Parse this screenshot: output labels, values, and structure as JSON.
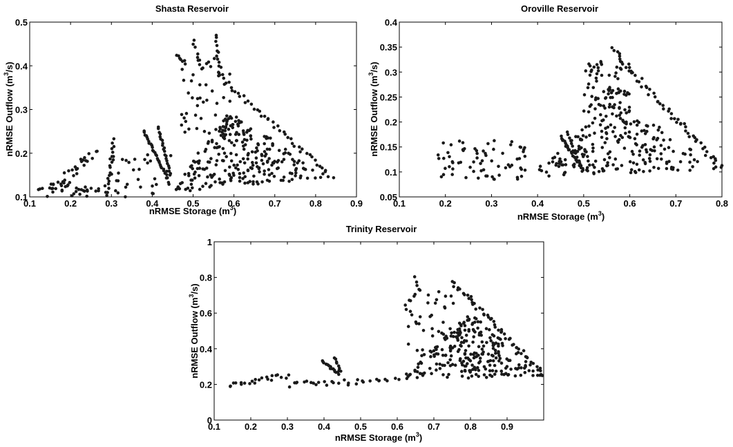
{
  "chart_data": [
    {
      "type": "scatter",
      "title": "Shasta Reservoir",
      "xlabel": {
        "base": "nRMSE Storage (m",
        "sup": "3",
        "tail": ")"
      },
      "ylabel": {
        "base": "nRMSE Outflow (m",
        "sup": "3",
        "tail": "/s)"
      },
      "xlim": [
        0.1,
        0.9
      ],
      "ylim": [
        0.1,
        0.5
      ],
      "xticks": [
        0.1,
        0.2,
        0.3,
        0.4,
        0.5,
        0.6,
        0.7,
        0.8,
        0.9
      ],
      "xtick_labels": [
        "0.1",
        "0.2",
        "0.3",
        "0.4",
        "0.5",
        "0.6",
        "0.7",
        "0.8",
        "0.9"
      ],
      "yticks": [
        0.1,
        0.2,
        0.3,
        0.4,
        0.5
      ],
      "ytick_labels": [
        "0.1",
        "0.2",
        "0.3",
        "0.4",
        "0.5"
      ],
      "point_groups": [
        {
          "kind": "line",
          "from": [
            0.14,
            0.105
          ],
          "to": [
            0.26,
            0.21
          ],
          "n": 20,
          "jitter": [
            0.01,
            0.01
          ]
        },
        {
          "kind": "line",
          "from": [
            0.165,
            0.11
          ],
          "to": [
            0.25,
            0.2
          ],
          "n": 12,
          "jitter": [
            0.01,
            0.012
          ]
        },
        {
          "kind": "line",
          "from": [
            0.29,
            0.105
          ],
          "to": [
            0.305,
            0.23
          ],
          "n": 18,
          "jitter": [
            0.003,
            0.004
          ]
        },
        {
          "kind": "line",
          "from": [
            0.38,
            0.25
          ],
          "to": [
            0.43,
            0.155
          ],
          "n": 26,
          "jitter": [
            0.002,
            0.002
          ]
        },
        {
          "kind": "line",
          "from": [
            0.415,
            0.26
          ],
          "to": [
            0.445,
            0.15
          ],
          "n": 22,
          "jitter": [
            0.002,
            0.002
          ]
        },
        {
          "kind": "line",
          "from": [
            0.46,
            0.425
          ],
          "to": [
            0.48,
            0.405
          ],
          "n": 7,
          "jitter": [
            0.003,
            0.004
          ]
        },
        {
          "kind": "line",
          "from": [
            0.5,
            0.46
          ],
          "to": [
            0.52,
            0.39
          ],
          "n": 8,
          "jitter": [
            0.003,
            0.003
          ]
        },
        {
          "kind": "line",
          "from": [
            0.555,
            0.47
          ],
          "to": [
            0.565,
            0.38
          ],
          "n": 12,
          "jitter": [
            0.003,
            0.004
          ]
        },
        {
          "kind": "line",
          "from": [
            0.56,
            0.38
          ],
          "to": [
            0.84,
            0.145
          ],
          "n": 45,
          "jitter": [
            0.004,
            0.006
          ]
        },
        {
          "kind": "box",
          "x": [
            0.47,
            0.6
          ],
          "y": [
            0.24,
            0.42
          ],
          "n": 45
        },
        {
          "kind": "tri",
          "a": [
            0.45,
            0.11
          ],
          "b": [
            0.84,
            0.145
          ],
          "c": [
            0.58,
            0.3
          ],
          "n": 260
        },
        {
          "kind": "box",
          "x": [
            0.12,
            0.3
          ],
          "y": [
            0.1,
            0.13
          ],
          "n": 30
        },
        {
          "kind": "box",
          "x": [
            0.3,
            0.45
          ],
          "y": [
            0.1,
            0.2
          ],
          "n": 35
        }
      ]
    },
    {
      "type": "scatter",
      "title": "Oroville Reservoir",
      "xlabel": {
        "base": "nRMSE Storage (m",
        "sup": "3",
        "tail": ")"
      },
      "ylabel": {
        "base": "nRMSE Outflow (m",
        "sup": "3",
        "tail": "/s)"
      },
      "xlim": [
        0.1,
        0.8
      ],
      "ylim": [
        0.05,
        0.4
      ],
      "xticks": [
        0.1,
        0.2,
        0.3,
        0.4,
        0.5,
        0.6,
        0.7,
        0.8
      ],
      "xtick_labels": [
        "0.1",
        "0.2",
        "0.3",
        "0.4",
        "0.5",
        "0.6",
        "0.7",
        "0.8"
      ],
      "yticks": [
        0.05,
        0.1,
        0.15,
        0.2,
        0.25,
        0.3,
        0.35,
        0.4
      ],
      "ytick_labels": [
        "0.05",
        "0.1",
        "0.15",
        "0.2",
        "0.25",
        "0.3",
        "0.35",
        "0.4"
      ],
      "point_groups": [
        {
          "kind": "box",
          "x": [
            0.18,
            0.38
          ],
          "y": [
            0.085,
            0.165
          ],
          "n": 70
        },
        {
          "kind": "line",
          "from": [
            0.45,
            0.17
          ],
          "to": [
            0.5,
            0.105
          ],
          "n": 28,
          "jitter": [
            0.002,
            0.002
          ]
        },
        {
          "kind": "line",
          "from": [
            0.465,
            0.18
          ],
          "to": [
            0.49,
            0.115
          ],
          "n": 14,
          "jitter": [
            0.002,
            0.003
          ]
        },
        {
          "kind": "line",
          "from": [
            0.56,
            0.345
          ],
          "to": [
            0.8,
            0.105
          ],
          "n": 60,
          "jitter": [
            0.006,
            0.008
          ]
        },
        {
          "kind": "box",
          "x": [
            0.5,
            0.6
          ],
          "y": [
            0.22,
            0.33
          ],
          "n": 70
        },
        {
          "kind": "tri",
          "a": [
            0.38,
            0.09
          ],
          "b": [
            0.8,
            0.105
          ],
          "c": [
            0.57,
            0.25
          ],
          "n": 220
        }
      ]
    },
    {
      "type": "scatter",
      "title": "Trinity Reservoir",
      "xlabel": {
        "base": "nRMSE Storage (m",
        "sup": "3",
        "tail": ")"
      },
      "ylabel": {
        "base": "nRMSE Outflow (m",
        "sup": "3",
        "tail": "/s)"
      },
      "xlim": [
        0.1,
        1.0
      ],
      "ylim": [
        0,
        1
      ],
      "xticks": [
        0.1,
        0.2,
        0.3,
        0.4,
        0.5,
        0.6,
        0.7,
        0.8,
        0.9
      ],
      "xtick_labels": [
        "0.1",
        "0.2",
        "0.3",
        "0.4",
        "0.5",
        "0.6",
        "0.7",
        "0.8",
        "0.9"
      ],
      "yticks": [
        0,
        0.2,
        0.4,
        0.6,
        0.8,
        1
      ],
      "ytick_labels": [
        "0",
        "0.2",
        "0.4",
        "0.6",
        "0.8",
        "1"
      ],
      "point_groups": [
        {
          "kind": "line",
          "from": [
            0.14,
            0.2
          ],
          "to": [
            0.3,
            0.25
          ],
          "n": 22,
          "jitter": [
            0.005,
            0.015
          ]
        },
        {
          "kind": "line",
          "from": [
            0.3,
            0.2
          ],
          "to": [
            0.6,
            0.22
          ],
          "n": 30,
          "jitter": [
            0.01,
            0.015
          ]
        },
        {
          "kind": "line",
          "from": [
            0.395,
            0.33
          ],
          "to": [
            0.44,
            0.26
          ],
          "n": 16,
          "jitter": [
            0.002,
            0.004
          ]
        },
        {
          "kind": "line",
          "from": [
            0.43,
            0.35
          ],
          "to": [
            0.445,
            0.27
          ],
          "n": 8,
          "jitter": [
            0.002,
            0.004
          ]
        },
        {
          "kind": "line",
          "from": [
            0.65,
            0.8
          ],
          "to": [
            0.66,
            0.72
          ],
          "n": 5,
          "jitter": [
            0.003,
            0.01
          ]
        },
        {
          "kind": "box",
          "x": [
            0.62,
            0.76
          ],
          "y": [
            0.35,
            0.72
          ],
          "n": 45
        },
        {
          "kind": "line",
          "from": [
            0.75,
            0.78
          ],
          "to": [
            1.0,
            0.25
          ],
          "n": 55,
          "jitter": [
            0.006,
            0.012
          ]
        },
        {
          "kind": "tri",
          "a": [
            0.6,
            0.22
          ],
          "b": [
            1.0,
            0.25
          ],
          "c": [
            0.8,
            0.6
          ],
          "n": 240
        }
      ]
    }
  ]
}
